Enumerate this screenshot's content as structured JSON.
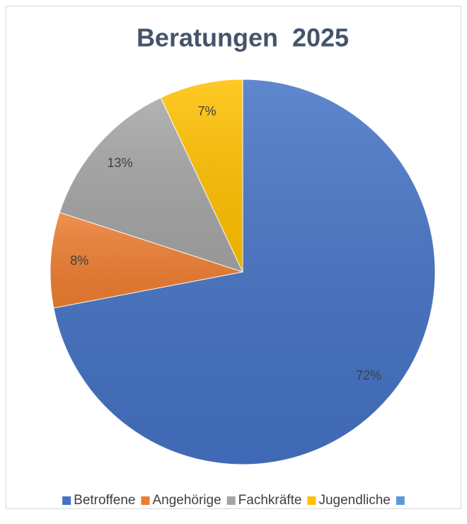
{
  "chart_data": {
    "type": "pie",
    "title": "Beratungen  2025",
    "categories": [
      "Betroffene",
      "Angehörige",
      "Fachkräfte",
      "Jugendliche",
      null
    ],
    "values": [
      72,
      8,
      13,
      7,
      0
    ],
    "value_labels": [
      "72%",
      "8%",
      "13%",
      "7%",
      null
    ],
    "colors": [
      "#4472c4",
      "#ed7d31",
      "#a5a5a5",
      "#ffc000",
      "#5b9bd5"
    ],
    "legend": "bottom"
  }
}
